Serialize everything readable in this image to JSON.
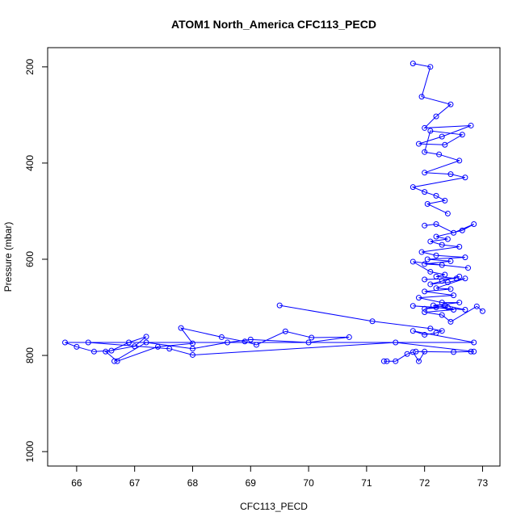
{
  "chart_data": {
    "type": "line",
    "title": "ATOM1 North_America CFC113_PECD",
    "xlabel": "CFC113_PECD",
    "ylabel": "Pressure (mbar)",
    "xlim": [
      65.5,
      73.3
    ],
    "ylim": [
      1030,
      160
    ],
    "y_reversed": true,
    "x_ticks": [
      66,
      67,
      68,
      69,
      70,
      71,
      72,
      73
    ],
    "y_ticks": [
      200,
      400,
      600,
      800,
      1000
    ],
    "color": "#0000ff",
    "marker": "open-circle",
    "series": [
      {
        "x": [
          71.8,
          72.1,
          71.95,
          72.45,
          72.2,
          72.0,
          72.8,
          72.3,
          71.9,
          72.35,
          72.65,
          72.1,
          72.0,
          72.25,
          72.6,
          72.0,
          72.45,
          72.7,
          71.8,
          72.0,
          72.2,
          72.35,
          72.05,
          72.4
        ],
        "y": [
          193,
          200,
          262,
          278,
          303,
          327,
          322,
          345,
          360,
          362,
          341,
          333,
          377,
          382,
          395,
          420,
          423,
          430,
          450,
          460,
          468,
          478,
          485,
          505
        ]
      },
      {
        "x": [
          72.0,
          72.2,
          72.5,
          72.85,
          72.65,
          72.2,
          72.4,
          72.1,
          72.3,
          72.6,
          71.95,
          72.2,
          72.7,
          72.05,
          72.45,
          72.0,
          72.3,
          72.75,
          71.8,
          72.1,
          72.35,
          72.2,
          72.55,
          72.0
        ],
        "y": [
          530,
          527,
          545,
          527,
          540,
          553,
          558,
          563,
          570,
          574,
          585,
          592,
          596,
          600,
          604,
          610,
          612,
          618,
          605,
          626,
          632,
          636,
          640,
          642
        ]
      },
      {
        "x": [
          72.3,
          72.6,
          72.1,
          72.4,
          72.7,
          72.2,
          72.45,
          72.0,
          72.5,
          71.9,
          72.3,
          72.6,
          72.15,
          72.4,
          72.0,
          72.35,
          72.7,
          71.8,
          72.2,
          72.5,
          72.0,
          72.3,
          72.45,
          72.9,
          73.0
        ],
        "y": [
          645,
          636,
          652,
          648,
          640,
          660,
          662,
          667,
          675,
          680,
          690,
          690,
          696,
          700,
          703,
          696,
          705,
          697,
          700,
          705,
          710,
          716,
          730,
          698,
          708
        ]
      },
      {
        "x": [
          69.5,
          71.1,
          72.1,
          72.3,
          72.2,
          72.0,
          71.8,
          72.85,
          65.8,
          66.0,
          66.3,
          66.6,
          66.9,
          67.2,
          67.0,
          66.5,
          66.7,
          67.4,
          68.0,
          67.8,
          68.5,
          68.9,
          69.1,
          69.6,
          70.05,
          70.7,
          70.0,
          69.0,
          68.6,
          68.0,
          67.2,
          66.65
        ],
        "y": [
          696,
          729,
          744,
          749,
          753,
          757,
          749,
          773,
          773,
          782,
          792,
          790,
          773,
          761,
          781,
          792,
          812,
          782,
          775,
          743,
          762,
          771,
          778,
          750,
          763,
          762,
          773,
          767,
          773,
          786,
          773,
          812
        ]
      },
      {
        "x": [
          71.3,
          71.35,
          71.5,
          71.7,
          71.8,
          71.9,
          72.0,
          71.85,
          72.5,
          72.8,
          72.85,
          71.5,
          68.0,
          67.6,
          66.2
        ],
        "y": [
          812,
          812,
          812,
          797,
          793,
          812,
          792,
          792,
          793,
          792,
          792,
          773,
          799,
          786,
          773
        ]
      }
    ]
  }
}
